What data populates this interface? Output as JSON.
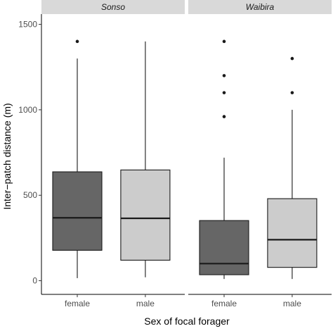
{
  "chart_data": {
    "type": "boxplot",
    "xlabel": "Sex of focal forager",
    "ylabel": "Inter−patch distance (m)",
    "ylim": [
      -80,
      1560
    ],
    "yticks": [
      0,
      500,
      1000,
      1500
    ],
    "grid": false,
    "categories": [
      "female",
      "male"
    ],
    "fill_colors": {
      "female": "#666666",
      "male": "#cccccc"
    },
    "facets": [
      {
        "label": "Sonso",
        "boxes": [
          {
            "category": "female",
            "whisker_low": 15,
            "q1": 178,
            "median": 368,
            "q3": 637,
            "whisker_high": 1300,
            "outliers": [
              1400
            ]
          },
          {
            "category": "male",
            "whisker_low": 20,
            "q1": 120,
            "median": 365,
            "q3": 648,
            "whisker_high": 1400,
            "outliers": []
          }
        ]
      },
      {
        "label": "Waibira",
        "boxes": [
          {
            "category": "female",
            "whisker_low": 10,
            "q1": 35,
            "median": 100,
            "q3": 352,
            "whisker_high": 720,
            "outliers": [
              960,
              1100,
              1200,
              1400
            ]
          },
          {
            "category": "male",
            "whisker_low": 10,
            "q1": 78,
            "median": 240,
            "q3": 480,
            "whisker_high": 1000,
            "outliers": [
              1100,
              1300
            ]
          }
        ]
      }
    ]
  }
}
